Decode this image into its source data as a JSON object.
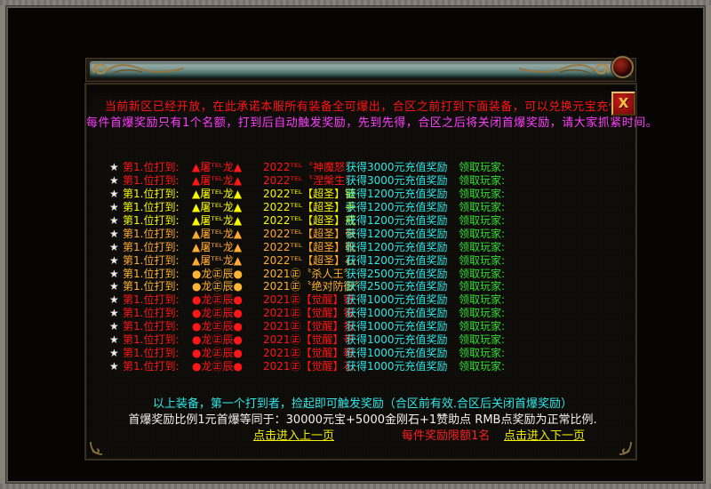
{
  "window": {
    "close_glyph": "X"
  },
  "announcement": {
    "line1": "当前新区已经开放，在此承诺本服所有装备全可爆出，合区之前打到下面装备，可以兑换元宝充值",
    "line2": "每件首爆奖励只有1个名额，打到后自动触发奖励，先到先得，合区之后将关闭首爆奖励，请大家抓紧时间。"
  },
  "table": {
    "star": "★",
    "rows": [
      {
        "label": "第1.位打到:",
        "player": "▲屠ᵀᴱᴸ龙▲",
        "item": "2022ᵀᴱᴸ〝神魔怒〞",
        "reward": "获得3000元充值奖励",
        "claim": "领取玩家:",
        "color": "#ff1616"
      },
      {
        "label": "第1.位打到:",
        "player": "▲屠ᵀᴱᴸ龙▲",
        "item": "2022ᵀᴱᴸ〝涅槃生〞",
        "reward": "获得3000元充值奖励",
        "claim": "领取玩家:",
        "color": "#ff1616"
      },
      {
        "label": "第1.位打到:",
        "player": "▲屠ᵀᴱᴸ龙▲",
        "item": "2022ᵀᴱᴸ【超圣】链",
        "reward": "获得1200元充值奖励",
        "claim": "领取玩家:",
        "color": "#f8f800"
      },
      {
        "label": "第1.位打到:",
        "player": "▲屠ᵀᴱᴸ龙▲",
        "item": "2022ᵀᴱᴸ【超圣】手",
        "reward": "获得1200元充值奖励",
        "claim": "领取玩家:",
        "color": "#f8f800"
      },
      {
        "label": "第1.位打到:",
        "player": "▲屠ᵀᴱᴸ龙▲",
        "item": "2022ᵀᴱᴸ【超圣】戒",
        "reward": "获得1200元充值奖励",
        "claim": "领取玩家:",
        "color": "#f8f800"
      },
      {
        "label": "第1.位打到:",
        "player": "▲屠ᵀᴱᴸ龙▲",
        "item": "2022ᵀᴱᴸ【超圣】带",
        "reward": "获得1200元充值奖励",
        "claim": "领取玩家:",
        "color": "#ffaa32"
      },
      {
        "label": "第1.位打到:",
        "player": "▲屠ᵀᴱᴸ龙▲",
        "item": "2022ᵀᴱᴸ【超圣】靴",
        "reward": "获得1200元充值奖励",
        "claim": "领取玩家:",
        "color": "#ffaa32"
      },
      {
        "label": "第1.位打到:",
        "player": "▲屠ᵀᴱᴸ龙▲",
        "item": "2022ᵀᴱᴸ【超圣】石",
        "reward": "获得1200元充值奖励",
        "claim": "领取玩家:",
        "color": "#ffaa32"
      },
      {
        "label": "第1.位打到:",
        "player": "●龙㊣辰●",
        "item": "2021㊣〝杀人王〞",
        "reward": "获得2500元充值奖励",
        "claim": "领取玩家:",
        "color": "#ffb432"
      },
      {
        "label": "第1.位打到:",
        "player": "●龙㊣辰●",
        "item": "2021㊣〝绝对防御〞",
        "reward": "获得2500元充值奖励",
        "claim": "领取玩家:",
        "color": "#ffb432"
      },
      {
        "label": "第1.位打到:",
        "player": "●龙㊣辰●",
        "item": "2021㊣【觉醒】链",
        "reward": "获得1000元充值奖励",
        "claim": "领取玩家:",
        "color": "#ff1616"
      },
      {
        "label": "第1.位打到:",
        "player": "●龙㊣辰●",
        "item": "2021㊣【觉醒】镯",
        "reward": "获得1000元充值奖励",
        "claim": "领取玩家:",
        "color": "#ff1616"
      },
      {
        "label": "第1.位打到:",
        "player": "●龙㊣辰●",
        "item": "2021㊣【觉醒】指",
        "reward": "获得1000元充值奖励",
        "claim": "领取玩家:",
        "color": "#ff1616"
      },
      {
        "label": "第1.位打到:",
        "player": "●龙㊣辰●",
        "item": "2021㊣【觉醒】带",
        "reward": "获得1000元充值奖励",
        "claim": "领取玩家:",
        "color": "#ff1616"
      },
      {
        "label": "第1.位打到:",
        "player": "●龙㊣辰●",
        "item": "2021㊣【觉醒】鞋",
        "reward": "获得1000元充值奖励",
        "claim": "领取玩家:",
        "color": "#ff1616"
      },
      {
        "label": "第1.位打到:",
        "player": "●龙㊣辰●",
        "item": "2021㊣【觉醒】石",
        "reward": "获得1000元充值奖励",
        "claim": "领取玩家:",
        "color": "#ff1616"
      }
    ]
  },
  "footer": {
    "summary": "以上装备，第一个打到者，捡起即可触发奖励（合区前有效.合区后关闭首爆奖励）",
    "ratio": "首爆奖励比例1元首爆等同于：30000元宝+5000金刚石+1赞助点 RMB点奖励为正常比例.",
    "prev_link": "点击进入上一页",
    "limit_note": "每件奖励限额1名",
    "next_link": "点击进入下一页"
  },
  "colors": {
    "announce_red": "#ff1414",
    "announce_magenta": "#ff3cff",
    "reward_cyan": "#2ee8e8",
    "claim_green": "#30e032",
    "summary_cyan": "#2ee8e8",
    "ratio_white": "#f2f2f2",
    "link_yellow": "#f0f000",
    "limit_red": "#ff2020",
    "row_red": "#ff1616",
    "row_yellow": "#f8f800",
    "row_orange": "#ffaa32",
    "row_gold": "#ffb432"
  }
}
